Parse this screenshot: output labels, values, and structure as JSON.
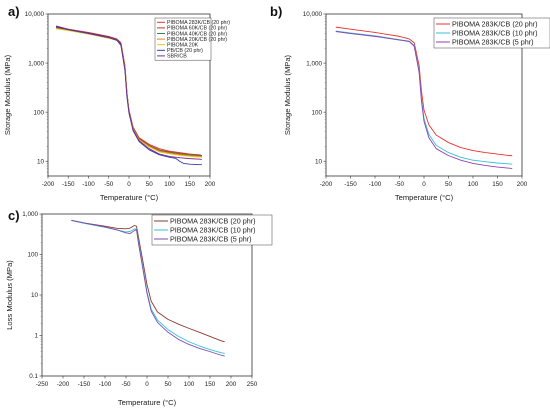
{
  "chart_data": [
    {
      "panel_label": "a)",
      "type": "line",
      "xlabel": "Temperature (°C)",
      "ylabel": "Storage Modulus (MPa)",
      "xlim": [
        -200,
        200
      ],
      "ylim": [
        5,
        10000
      ],
      "yscale": "log",
      "x_ticks": [
        "-200",
        "-150",
        "-100",
        "-50",
        "0",
        "50",
        "100",
        "150",
        "200"
      ],
      "y_ticks": [
        "10",
        "100",
        "1,000",
        "10,000"
      ],
      "legend_position": "top-right",
      "series": [
        {
          "name": "PIBOMA 283K/CB (20 phr)",
          "color": "#e8332d",
          "x": [
            -180,
            -150,
            -100,
            -50,
            -30,
            -20,
            -10,
            -5,
            0,
            10,
            25,
            50,
            75,
            100,
            125,
            150,
            175,
            180
          ],
          "y": [
            5400,
            4900,
            4200,
            3500,
            3100,
            2600,
            900,
            250,
            110,
            50,
            30,
            22,
            18,
            16,
            15,
            14,
            13.5,
            13
          ]
        },
        {
          "name": "PIBOMA 60K/CB (20 phr)",
          "color": "#c0392b",
          "x": [
            -180,
            -150,
            -100,
            -50,
            -30,
            -20,
            -10,
            -5,
            0,
            10,
            25,
            50,
            75,
            100,
            125,
            150,
            175,
            180
          ],
          "y": [
            5300,
            4800,
            4100,
            3400,
            3050,
            2500,
            850,
            240,
            105,
            48,
            29,
            21,
            17,
            15.5,
            14.5,
            13.8,
            13.2,
            13
          ]
        },
        {
          "name": "PIBOMA 40K/CB (20 phr)",
          "color": "#2e8b57",
          "x": [
            -180,
            -150,
            -100,
            -50,
            -30,
            -20,
            -10,
            -5,
            0,
            10,
            25,
            50,
            75,
            100,
            125,
            150,
            175,
            180
          ],
          "y": [
            5200,
            4700,
            4000,
            3300,
            3000,
            2450,
            830,
            235,
            102,
            47,
            28,
            20.5,
            16.5,
            15,
            14,
            13.4,
            12.9,
            12.7
          ]
        },
        {
          "name": "PIBOMA 20K/CB (20 phr)",
          "color": "#e67e22",
          "x": [
            -180,
            -150,
            -100,
            -50,
            -30,
            -20,
            -10,
            -5,
            0,
            10,
            25,
            50,
            75,
            100,
            125,
            150,
            175,
            180
          ],
          "y": [
            5100,
            4650,
            3950,
            3250,
            2950,
            2400,
            820,
            230,
            100,
            46,
            27.5,
            20,
            16,
            14.6,
            13.6,
            13,
            12.5,
            12.3
          ]
        },
        {
          "name": "PIBOMA 20K",
          "color": "#f1c40f",
          "x": [
            -180,
            -150,
            -100,
            -50,
            -30,
            -20,
            -10,
            -5,
            0,
            10,
            25,
            50,
            75,
            100,
            125,
            150,
            175,
            180
          ],
          "y": [
            5000,
            4600,
            3900,
            3200,
            2900,
            2350,
            800,
            225,
            98,
            45,
            27,
            19.5,
            15.5,
            14.2,
            13.2,
            12.6,
            12.2,
            12
          ]
        },
        {
          "name": "PB/CB (20 phr)",
          "color": "#2e3fa8",
          "x": [
            -180,
            -150,
            -100,
            -50,
            -30,
            -20,
            -10,
            -5,
            0,
            10,
            25,
            50,
            75,
            100,
            115,
            125,
            135,
            150,
            175,
            180
          ],
          "y": [
            5500,
            4800,
            4000,
            3300,
            2900,
            2300,
            700,
            200,
            95,
            42,
            25,
            17,
            13.5,
            12,
            11.5,
            10,
            9,
            8.7,
            8.5,
            8.5
          ]
        },
        {
          "name": "SBR/CB",
          "color": "#7a2f8c",
          "x": [
            -180,
            -150,
            -100,
            -50,
            -30,
            -20,
            -10,
            -5,
            0,
            10,
            25,
            50,
            75,
            100,
            125,
            150,
            175,
            180
          ],
          "y": [
            5700,
            4900,
            4100,
            3400,
            3000,
            2450,
            750,
            215,
            100,
            44,
            26,
            18,
            14,
            12.5,
            11.8,
            11.3,
            11,
            10.9
          ]
        }
      ]
    },
    {
      "panel_label": "b)",
      "type": "line",
      "xlabel": "Temperature (°C)",
      "ylabel": "Storage Modulus (MPa)",
      "xlim": [
        -200,
        200
      ],
      "ylim": [
        5,
        10000
      ],
      "yscale": "log",
      "x_ticks": [
        "-200",
        "-150",
        "-100",
        "-50",
        "0",
        "50",
        "100",
        "150",
        "200"
      ],
      "y_ticks": [
        "10",
        "100",
        "1,000",
        "10,000"
      ],
      "legend_position": "top-right",
      "series": [
        {
          "name": "PIBOMA 283K/CB (20 phr)",
          "color": "#e8332d",
          "x": [
            -180,
            -150,
            -100,
            -50,
            -30,
            -20,
            -10,
            -5,
            0,
            10,
            25,
            50,
            75,
            100,
            125,
            150,
            175,
            180
          ],
          "y": [
            5400,
            4900,
            4200,
            3500,
            3100,
            2600,
            900,
            260,
            110,
            55,
            34,
            24,
            19,
            16.5,
            15,
            14,
            13,
            13
          ]
        },
        {
          "name": "PIBOMA 283K/CB (10 phr)",
          "color": "#35c0d8",
          "x": [
            -180,
            -150,
            -100,
            -50,
            -30,
            -20,
            -10,
            -5,
            0,
            10,
            25,
            50,
            75,
            100,
            125,
            150,
            175,
            180
          ],
          "y": [
            4500,
            4100,
            3600,
            3000,
            2800,
            2300,
            700,
            180,
            75,
            35,
            21,
            15,
            12,
            10.5,
            9.8,
            9.2,
            8.8,
            8.7
          ]
        },
        {
          "name": "PIBOMA 283K/CB (5 phr)",
          "color": "#8e44ad",
          "x": [
            -180,
            -150,
            -100,
            -50,
            -30,
            -20,
            -10,
            -5,
            0,
            10,
            25,
            50,
            75,
            100,
            125,
            150,
            175,
            180
          ],
          "y": [
            4400,
            4000,
            3500,
            2950,
            2750,
            2200,
            650,
            160,
            65,
            30,
            18,
            13,
            10.5,
            9,
            8.2,
            7.6,
            7.2,
            7.1
          ]
        }
      ]
    },
    {
      "panel_label": "c)",
      "type": "line",
      "xlabel": "Temperature (°C)",
      "ylabel": "Loss Modulus (MPa)",
      "xlim": [
        -250,
        250
      ],
      "ylim": [
        0.1,
        1000
      ],
      "yscale": "log",
      "x_ticks": [
        "-250",
        "-200",
        "-150",
        "-100",
        "-50",
        "0",
        "50",
        "100",
        "150",
        "200",
        "250"
      ],
      "y_ticks": [
        "0.1",
        "1",
        "10",
        "100",
        "1,000"
      ],
      "legend_position": "top-right",
      "series": [
        {
          "name": "PIBOMA 283K/CB (20 phr)",
          "color": "#8b3a2e",
          "x": [
            -180,
            -150,
            -100,
            -70,
            -50,
            -40,
            -30,
            -25,
            -20,
            -10,
            0,
            10,
            25,
            50,
            75,
            100,
            125,
            150,
            175,
            185
          ],
          "y": [
            700,
            600,
            500,
            440,
            430,
            450,
            520,
            500,
            260,
            70,
            18,
            7,
            3.8,
            2.5,
            1.9,
            1.5,
            1.2,
            0.95,
            0.75,
            0.7
          ]
        },
        {
          "name": "PIBOMA 283K/CB (10 phr)",
          "color": "#35c0d8",
          "x": [
            -180,
            -150,
            -100,
            -70,
            -50,
            -40,
            -30,
            -25,
            -20,
            -10,
            0,
            10,
            25,
            50,
            75,
            100,
            125,
            150,
            175,
            185
          ],
          "y": [
            690,
            590,
            470,
            400,
            360,
            370,
            430,
            420,
            200,
            50,
            12,
            4.5,
            2.4,
            1.4,
            0.95,
            0.7,
            0.55,
            0.45,
            0.38,
            0.36
          ]
        },
        {
          "name": "PIBOMA 283K/CB (5 phr)",
          "color": "#7b4fb0",
          "x": [
            -180,
            -150,
            -100,
            -70,
            -50,
            -40,
            -30,
            -25,
            -20,
            -10,
            0,
            10,
            25,
            50,
            75,
            100,
            125,
            150,
            175,
            185
          ],
          "y": [
            700,
            600,
            480,
            400,
            340,
            330,
            390,
            410,
            180,
            45,
            11,
            4,
            2.1,
            1.2,
            0.8,
            0.6,
            0.48,
            0.4,
            0.33,
            0.31
          ]
        }
      ]
    }
  ]
}
